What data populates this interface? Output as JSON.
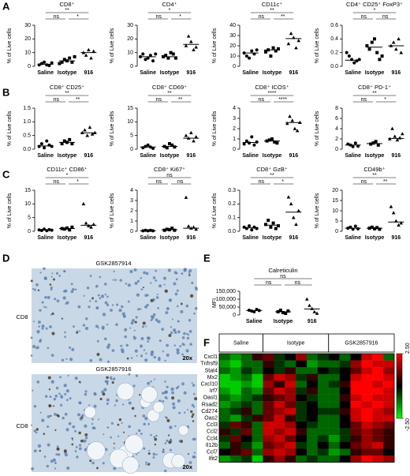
{
  "panel_labels": [
    "A",
    "B",
    "C",
    "D",
    "E",
    "F"
  ],
  "histology": {
    "titles": [
      "GSK2857914",
      "GSK2857916"
    ],
    "stain": "CD8",
    "magnification": "20x"
  },
  "chart_data": [
    {
      "type": "dotplot",
      "title": "CD8⁺",
      "ylabel": "% of Live cells",
      "categories": [
        "Saline",
        "Isotype",
        "916"
      ],
      "ylim": [
        0,
        30
      ],
      "yticks": [
        0,
        10,
        20,
        30
      ],
      "points": [
        [
          1,
          2,
          3,
          1,
          0.5,
          2.5
        ],
        [
          2,
          3,
          5,
          4,
          6,
          3,
          7
        ],
        [
          10,
          8,
          12,
          6,
          11
        ]
      ],
      "medians": [
        1.5,
        4,
        10
      ],
      "significance": [
        "ns",
        "*",
        "**"
      ]
    },
    {
      "type": "dotplot",
      "title": "CD4⁺",
      "ylabel": "% of Live cells",
      "categories": [
        "Saline",
        "Isotype",
        "916"
      ],
      "ylim": [
        0,
        30
      ],
      "yticks": [
        0,
        10,
        20,
        30
      ],
      "points": [
        [
          7,
          9,
          5,
          6,
          8,
          4,
          9
        ],
        [
          7,
          8,
          6,
          10,
          9,
          6
        ],
        [
          15,
          22,
          18,
          12,
          14
        ]
      ],
      "medians": [
        7,
        7,
        16
      ],
      "significance": [
        "ns",
        "*",
        "*"
      ]
    },
    {
      "type": "dotplot",
      "title": "CD11c⁺",
      "ylabel": "% of Live cells",
      "categories": [
        "Saline",
        "Isotype",
        "916"
      ],
      "ylim": [
        0,
        40
      ],
      "yticks": [
        0,
        10,
        20,
        30,
        40
      ],
      "points": [
        [
          13,
          10,
          8,
          15,
          12,
          16
        ],
        [
          14,
          16,
          10,
          18,
          15,
          17
        ],
        [
          22,
          32,
          28,
          18,
          25
        ]
      ],
      "medians": [
        13,
        16,
        27
      ],
      "significance": [
        "ns",
        "**",
        "**"
      ]
    },
    {
      "type": "dotplot",
      "title": "CD4⁺ CD25⁺ FoxP3⁺",
      "ylabel": "% of Live cells",
      "categories": [
        "Saline",
        "Isotype",
        "916"
      ],
      "ylim": [
        0,
        0.6
      ],
      "yticks": [
        {
          "value": 0,
          "label": "0.0"
        },
        {
          "value": 0.2,
          "label": "0.2"
        },
        {
          "value": 0.4,
          "label": "0.4"
        },
        {
          "value": 0.6,
          "label": "0.6"
        }
      ],
      "points": [
        [
          0.2,
          0.15,
          0.1,
          0.05,
          0.08,
          0.1
        ],
        [
          0.3,
          0.25,
          0.35,
          0.4,
          0.2,
          0.1,
          0.15
        ],
        [
          0.3,
          0.35,
          0.25,
          0.4,
          0.2
        ]
      ],
      "medians": [
        0.09,
        0.28,
        0.3
      ],
      "significance": [
        "ns",
        "ns",
        "*"
      ]
    },
    {
      "type": "dotplot",
      "title": "CD8⁺ CD25⁺",
      "ylabel": "% of Live cells",
      "categories": [
        "Saline",
        "Isotype",
        "916"
      ],
      "ylim": [
        0,
        1.5
      ],
      "yticks": [
        {
          "value": 0,
          "label": "0.0"
        },
        {
          "value": 0.5,
          "label": "0.5"
        },
        {
          "value": 1,
          "label": "1.0"
        },
        {
          "value": 1.5,
          "label": "1.5"
        }
      ],
      "points": [
        [
          0.1,
          0.2,
          0.05,
          0.3,
          0.15,
          0.1
        ],
        [
          0.2,
          0.3,
          0.25,
          0.35,
          0.2
        ],
        [
          0.6,
          0.7,
          0.5,
          0.8,
          0.55,
          0.6
        ]
      ],
      "medians": [
        0.12,
        0.25,
        0.6
      ],
      "significance": [
        "ns",
        "**",
        "**"
      ]
    },
    {
      "type": "dotplot",
      "title": "CD8⁺ CD69⁺",
      "ylabel": "% of Live cells",
      "categories": [
        "Saline",
        "Isotype",
        "916"
      ],
      "ylim": [
        0,
        15
      ],
      "yticks": [
        0,
        5,
        10,
        15
      ],
      "points": [
        [
          0.5,
          1,
          1.5,
          0.8,
          0.3
        ],
        [
          1,
          0.5,
          2,
          1.5,
          0.8
        ],
        [
          5,
          4,
          6,
          3,
          4.5
        ]
      ],
      "medians": [
        0.8,
        1,
        4
      ],
      "significance": [
        "ns",
        "**",
        "**"
      ]
    },
    {
      "type": "dotplot",
      "title": "CD8⁺ ICOS⁺",
      "ylabel": "% of Live cells",
      "categories": [
        "Saline",
        "Isotype",
        "916"
      ],
      "ylim": [
        0,
        4
      ],
      "yticks": [
        0,
        1,
        2,
        3,
        4
      ],
      "points": [
        [
          0.5,
          0.8,
          0.6,
          1.2,
          0.4,
          0.7
        ],
        [
          0.8,
          0.9,
          1,
          0.7,
          0.6
        ],
        [
          2.5,
          3.2,
          2.8,
          2,
          1.8,
          2.6
        ]
      ],
      "medians": [
        0.65,
        0.8,
        2.6
      ],
      "significance": [
        "ns",
        "****",
        "****"
      ]
    },
    {
      "type": "dotplot",
      "title": "CD8⁺ PD-1⁺",
      "ylabel": "% of Live cells",
      "categories": [
        "Saline",
        "Isotype",
        "916"
      ],
      "ylim": [
        0,
        8
      ],
      "yticks": [
        0,
        2,
        4,
        6,
        8
      ],
      "points": [
        [
          1,
          0.8,
          0.5,
          1.2,
          0.6
        ],
        [
          1,
          1.2,
          1.5,
          0.8
        ],
        [
          2,
          4,
          2.5,
          1.8,
          2.2,
          3
        ]
      ],
      "medians": [
        0.8,
        1.1,
        2.1
      ],
      "significance": [
        "ns",
        "*",
        "**"
      ]
    },
    {
      "type": "dotplot",
      "title": "CD11c⁺ CD86⁺",
      "ylabel": "% of Live cells",
      "categories": [
        "Saline",
        "Isotype",
        "916"
      ],
      "ylim": [
        0,
        15
      ],
      "yticks": [
        0,
        5,
        10,
        15
      ],
      "points": [
        [
          0.5,
          0.3,
          0.8,
          0.2,
          0.6,
          0.4
        ],
        [
          1,
          0.8,
          1.2,
          0.5,
          1.5
        ],
        [
          10,
          3,
          2,
          1.5,
          2.5
        ]
      ],
      "medians": [
        0.45,
        1,
        2.2
      ],
      "significance": [
        "ns",
        "*",
        "*"
      ]
    },
    {
      "type": "dotplot",
      "title": "CD8⁺ Ki67⁺",
      "ylabel": "% of Live cells",
      "categories": [
        "Saline",
        "Isotype",
        "916"
      ],
      "ylim": [
        0,
        4
      ],
      "yticks": [
        0,
        1,
        2,
        3,
        4
      ],
      "points": [
        [
          0.05,
          0.1,
          0.05,
          0.1,
          0.05
        ],
        [
          0.1,
          0.2,
          0.15,
          0.3,
          0.1
        ],
        [
          3.3,
          0.5,
          0.3,
          0.4,
          0.2
        ]
      ],
      "medians": [
        0.05,
        0.15,
        0.3
      ],
      "significance": [
        "ns",
        "ns",
        "ns"
      ]
    },
    {
      "type": "dotplot",
      "title": "CD8⁺ GzB⁺",
      "ylabel": "% of Live cells",
      "categories": [
        "Saline",
        "Isotype",
        "916"
      ],
      "ylim": [
        0,
        0.3
      ],
      "yticks": [
        {
          "value": 0,
          "label": "0.0"
        },
        {
          "value": 0.1,
          "label": "0.1"
        },
        {
          "value": 0.2,
          "label": "0.2"
        },
        {
          "value": 0.3,
          "label": "0.3"
        }
      ],
      "points": [
        [
          0.03,
          0.02,
          0.04,
          0.01,
          0.03,
          0.02
        ],
        [
          0.05,
          0.08,
          0.03,
          0.06,
          0.02,
          0.04
        ],
        [
          0.25,
          0.2,
          0.1,
          0.05,
          0.15
        ]
      ],
      "medians": [
        0.025,
        0.045,
        0.14
      ],
      "significance": [
        "ns",
        "*",
        "**"
      ]
    },
    {
      "type": "dotplot",
      "title": "CD49b⁺",
      "ylabel": "% of Live cells",
      "categories": [
        "Saline",
        "Isotype",
        "916"
      ],
      "ylim": [
        0,
        20
      ],
      "yticks": [
        0,
        5,
        10,
        15,
        20
      ],
      "points": [
        [
          1.5,
          2,
          1,
          2.5,
          1.2
        ],
        [
          1.5,
          2,
          1.2,
          1.8,
          1
        ],
        [
          12,
          9,
          5,
          3,
          4
        ]
      ],
      "medians": [
        1.5,
        1.5,
        4.5
      ],
      "significance": [
        "ns",
        "**",
        "**"
      ]
    },
    {
      "type": "dotplot",
      "title": "Calreticulin",
      "ylabel": "MFI",
      "categories": [
        "Saline",
        "Isotype",
        "916"
      ],
      "ylim": [
        0,
        150000
      ],
      "yticks": [
        0,
        {
          "value": 50000,
          "label": "50,000"
        },
        {
          "value": 100000,
          "label": "100,000"
        },
        {
          "value": 150000,
          "label": "150,000"
        }
      ],
      "points": [
        [
          30000,
          25000,
          20000,
          35000,
          28000
        ],
        [
          20000,
          30000,
          15000,
          10000,
          25000
        ],
        [
          100000,
          60000,
          40000,
          20000,
          10000
        ]
      ],
      "medians": [
        28000,
        20000,
        38000
      ],
      "significance": [
        "ns",
        "ns",
        "ns"
      ]
    },
    {
      "type": "heatmap",
      "rows": [
        "Cxcl1",
        "Tnfrsf9",
        "Stat4",
        "Mx2",
        "Cxcl10",
        "Irf7",
        "Oasl1",
        "Rsad2",
        "Cd274",
        "Oas2",
        "Ccl3",
        "Ccl2",
        "Ccl4",
        "Il12b",
        "Ccl7",
        "Ifit2"
      ],
      "clim": [
        -2.5,
        2.5
      ],
      "cticks": [
        {
          "value": 2.5,
          "label": "2.50"
        },
        {
          "value": -2.5,
          "label": "-2.50"
        }
      ],
      "groups": [
        {
          "name": "Saline",
          "values": [
            [
              -1,
              -1.5,
              -1,
              0.5
            ],
            [
              -1.5,
              -2,
              -1,
              -1
            ],
            [
              -1,
              -1.5,
              -0.5,
              -1
            ],
            [
              -2,
              -1.5,
              -1,
              -2
            ],
            [
              -2,
              -2,
              -1.5,
              -2
            ],
            [
              -1.5,
              -2,
              -1,
              -1.5
            ],
            [
              -1,
              -1.5,
              -1,
              -0.5
            ],
            [
              -1.5,
              -1,
              -0.5,
              -1
            ],
            [
              -1,
              -0.5,
              0.5,
              -1
            ],
            [
              -1,
              -1.5,
              -0.5,
              0.5
            ],
            [
              -0.5,
              1,
              0.5,
              -1
            ],
            [
              0.5,
              -0.5,
              1,
              -1
            ],
            [
              -0.5,
              1,
              0,
              -1
            ],
            [
              -1,
              0.5,
              -0.5,
              -1.5
            ],
            [
              0,
              0.5,
              1,
              -1
            ],
            [
              -1.5,
              -1,
              -0.5,
              -2
            ]
          ]
        },
        {
          "name": "Isotype",
          "values": [
            [
              1,
              -0.5,
              0,
              1.5,
              -1,
              -0.5
            ],
            [
              0.5,
              -0.5,
              -1,
              0,
              -1.5,
              -1
            ],
            [
              0,
              -0.5,
              0.5,
              -1,
              -1,
              0
            ],
            [
              1,
              2,
              1.5,
              -0.5,
              0.5,
              -1
            ],
            [
              1.5,
              0.5,
              2,
              -1,
              0,
              -1
            ],
            [
              1,
              2,
              1.5,
              -0.5,
              0.5,
              -1
            ],
            [
              0.5,
              1,
              1.5,
              0,
              -0.5,
              -1
            ],
            [
              1,
              2,
              1,
              -0.5,
              0,
              -1
            ],
            [
              1,
              1.5,
              2,
              -0.5,
              0,
              -0.5
            ],
            [
              1,
              2,
              0.5,
              -0.5,
              0,
              -1
            ],
            [
              2,
              2,
              1.5,
              0,
              -0.5,
              -1
            ],
            [
              2,
              1.5,
              2,
              0.5,
              -1,
              -1
            ],
            [
              1.5,
              2,
              1,
              0,
              -1,
              -0.5
            ],
            [
              1,
              1.5,
              2,
              -0.5,
              -1,
              0
            ],
            [
              1.5,
              2,
              1.5,
              0,
              -1,
              -0.5
            ],
            [
              0.5,
              1.5,
              0.5,
              -1,
              -0.5,
              -1
            ]
          ]
        },
        {
          "name": "GSK2857916",
          "values": [
            [
              0,
              -1,
              0,
              2,
              2.5,
              -1
            ],
            [
              -1,
              -0.5,
              1.5,
              2.5,
              2,
              2
            ],
            [
              -0.5,
              0,
              1,
              2,
              2.5,
              1.5
            ],
            [
              -1,
              0,
              2,
              2.5,
              2.5,
              2
            ],
            [
              -0.5,
              0.5,
              2.5,
              2.5,
              2,
              2.5
            ],
            [
              -1,
              0,
              2.5,
              2.5,
              2.5,
              2
            ],
            [
              -1,
              0.5,
              2,
              2.5,
              2,
              2
            ],
            [
              -1,
              0,
              2.5,
              2,
              2.5,
              2
            ],
            [
              -0.5,
              0.5,
              2,
              2.5,
              2,
              1.5
            ],
            [
              -1,
              0,
              2,
              2.5,
              2,
              2
            ],
            [
              -1,
              0,
              1,
              2,
              1.5,
              1
            ],
            [
              -1,
              -0.5,
              1,
              1.5,
              1,
              0.5
            ],
            [
              -1.5,
              -0.5,
              0.5,
              1.5,
              1,
              0.5
            ],
            [
              -1,
              0,
              1,
              1.5,
              2,
              0.5
            ],
            [
              -1.5,
              -1,
              0.5,
              1,
              1,
              0
            ],
            [
              -1,
              0,
              1.5,
              2.5,
              2,
              1.5
            ]
          ]
        }
      ]
    }
  ]
}
